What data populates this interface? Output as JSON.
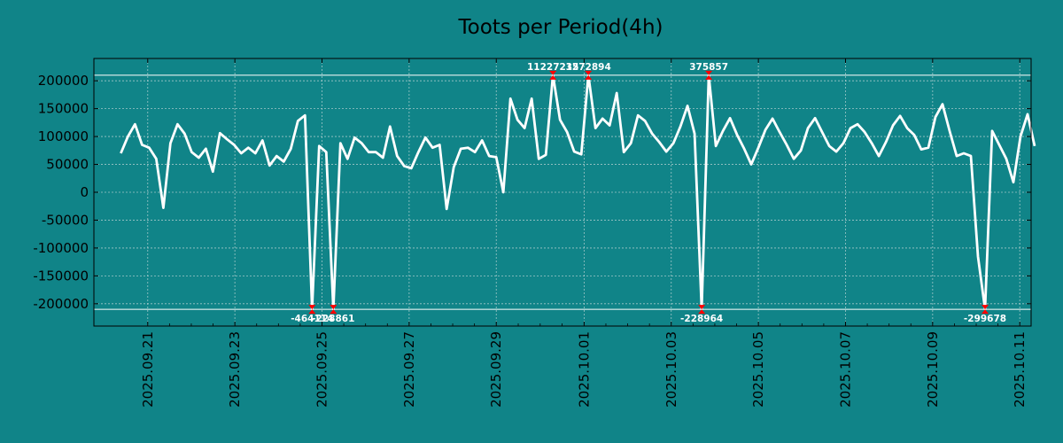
{
  "chart_data": {
    "type": "line",
    "title": "Toots per Period(4h)",
    "xlabel": "",
    "ylabel": "",
    "ylim": [
      -240000,
      240000
    ],
    "clip_band": [
      -210000,
      210000
    ],
    "yticks": [
      200000,
      150000,
      100000,
      50000,
      0,
      -50000,
      -100000,
      -150000,
      -200000
    ],
    "ytick_labels": [
      "200000",
      "150000",
      "100000",
      "50000",
      "0",
      "-50000",
      "-100000",
      "-150000",
      "-200000"
    ],
    "x_start_index": -3.8,
    "x_end_index": 128.5,
    "xticks": [
      {
        "index": 3.8,
        "label": "2025.09.21"
      },
      {
        "index": 16.1,
        "label": "2025.09.23"
      },
      {
        "index": 28.4,
        "label": "2025.09.25"
      },
      {
        "index": 40.7,
        "label": "2025.09.27"
      },
      {
        "index": 53.0,
        "label": "2025.09.29"
      },
      {
        "index": 65.4,
        "label": "2025.10.01"
      },
      {
        "index": 77.7,
        "label": "2025.10.03"
      },
      {
        "index": 90.0,
        "label": "2025.10.05"
      },
      {
        "index": 102.3,
        "label": "2025.10.07"
      },
      {
        "index": 114.6,
        "label": "2025.10.09"
      },
      {
        "index": 126.9,
        "label": "2025.10.11"
      }
    ],
    "values": [
      70000,
      100000,
      122000,
      85000,
      80000,
      60000,
      -28000,
      88000,
      122000,
      105000,
      72000,
      62000,
      78000,
      37000,
      106000,
      95000,
      85000,
      70000,
      80000,
      70000,
      93000,
      48000,
      65000,
      55000,
      78000,
      128000,
      138000,
      -210000,
      83000,
      72000,
      -210000,
      88000,
      60000,
      98000,
      88000,
      72000,
      72000,
      62000,
      118000,
      65000,
      47000,
      43000,
      72000,
      98000,
      80000,
      85000,
      -30000,
      45000,
      78000,
      80000,
      72000,
      93000,
      65000,
      63000,
      0,
      168000,
      130000,
      115000,
      168000,
      60000,
      67000,
      210000,
      130000,
      108000,
      73000,
      68000,
      210000,
      115000,
      132000,
      120000,
      178000,
      72000,
      88000,
      138000,
      128000,
      105000,
      90000,
      73000,
      88000,
      118000,
      155000,
      105000,
      -210000,
      210000,
      83000,
      110000,
      133000,
      103000,
      78000,
      50000,
      80000,
      112000,
      132000,
      108000,
      85000,
      60000,
      75000,
      115000,
      133000,
      108000,
      83000,
      73000,
      88000,
      115000,
      122000,
      108000,
      88000,
      65000,
      90000,
      120000,
      137000,
      115000,
      103000,
      77000,
      80000,
      135000,
      158000,
      110000,
      65000,
      70000,
      65000,
      -115000,
      -210000,
      110000,
      85000,
      60000,
      18000,
      100000,
      140000,
      83000
    ],
    "peak_annotations": [
      {
        "index": 27,
        "label": "-464114"
      },
      {
        "index": 30,
        "label": "-228861"
      },
      {
        "index": 61,
        "label": "11227235"
      },
      {
        "index": 66,
        "label": "1272894"
      },
      {
        "index": 82,
        "label": "-228964"
      },
      {
        "index": 83,
        "label": "375857"
      },
      {
        "index": 122,
        "label": "-299678"
      }
    ]
  }
}
